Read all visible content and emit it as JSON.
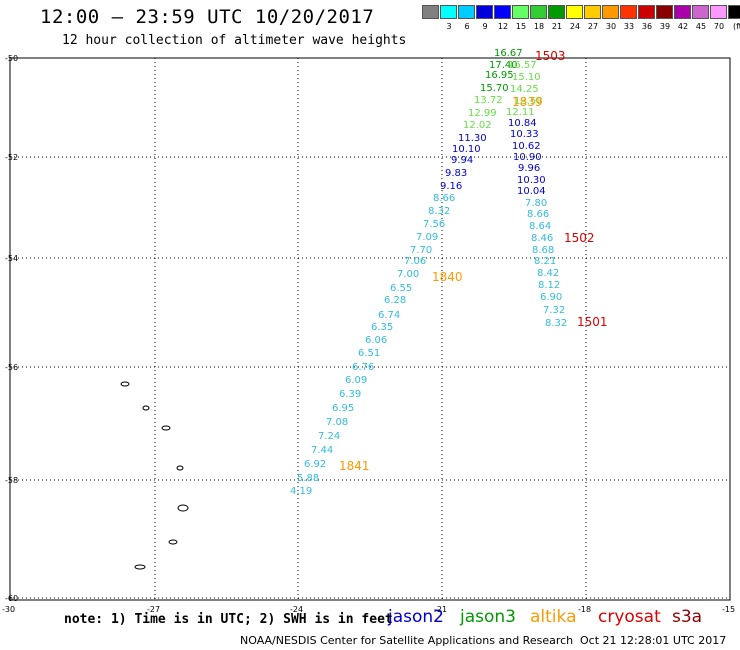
{
  "header": {
    "title": "12:00 — 23:59 UTC 10/20/2017",
    "subtitle": "12 hour collection of altimeter wave heights"
  },
  "color_scale": {
    "unit": "(ft)",
    "swatches": [
      "#808080",
      "#00ffff",
      "#00ccff",
      "#0000dd",
      "#0000ff",
      "#66ff66",
      "#33cc33",
      "#009900",
      "#ffff00",
      "#ffcc00",
      "#ff9900",
      "#ff3300",
      "#cc0000",
      "#880000",
      "#aa00aa",
      "#cc66cc",
      "#ff99ff",
      "#000000"
    ],
    "labels": [
      "3",
      "6",
      "9",
      "12",
      "15",
      "18",
      "21",
      "24",
      "27",
      "30",
      "33",
      "36",
      "39",
      "42",
      "45",
      "70"
    ]
  },
  "map": {
    "lat_labels": [
      "-50",
      "-52",
      "-54",
      "-56",
      "-58",
      "-60"
    ],
    "lon_labels": [
      "-30",
      "-27",
      "-24",
      "-21",
      "-18",
      "-15"
    ],
    "colors": {
      "jason2": "#0000cc",
      "jason3": "#009900",
      "altika": "#ff9900",
      "cryosat": "#dd0000",
      "s3a": "#880000",
      "cyan": "#33bbdd",
      "light_green": "#66dd44"
    },
    "track_a": [
      {
        "v": "4.19",
        "c": "cyan"
      },
      {
        "v": "5.88",
        "c": "cyan"
      },
      {
        "v": "6.92",
        "c": "cyan"
      },
      {
        "v": "7.44",
        "c": "cyan"
      },
      {
        "v": "7.24",
        "c": "cyan"
      },
      {
        "v": "7.08",
        "c": "cyan"
      },
      {
        "v": "6.95",
        "c": "cyan"
      },
      {
        "v": "6.39",
        "c": "cyan"
      },
      {
        "v": "6.09",
        "c": "cyan"
      },
      {
        "v": "6.76",
        "c": "cyan"
      },
      {
        "v": "6.51",
        "c": "cyan"
      },
      {
        "v": "6.06",
        "c": "cyan"
      },
      {
        "v": "6.35",
        "c": "cyan"
      },
      {
        "v": "6.74",
        "c": "cyan"
      },
      {
        "v": "6.28",
        "c": "cyan"
      },
      {
        "v": "6.55",
        "c": "cyan"
      },
      {
        "v": "7.00",
        "c": "cyan"
      },
      {
        "v": "7.06",
        "c": "cyan"
      },
      {
        "v": "7.70",
        "c": "cyan"
      },
      {
        "v": "7.09",
        "c": "cyan"
      },
      {
        "v": "7.56",
        "c": "cyan"
      },
      {
        "v": "8.32",
        "c": "cyan"
      },
      {
        "v": "8.66",
        "c": "cyan"
      },
      {
        "v": "9.16",
        "c": "jason2"
      },
      {
        "v": "9.83",
        "c": "jason2"
      },
      {
        "v": "9.94",
        "c": "jason2"
      },
      {
        "v": "10.10",
        "c": "jason2"
      },
      {
        "v": "11.30",
        "c": "jason2"
      },
      {
        "v": "12.02",
        "c": "light_green"
      },
      {
        "v": "12.99",
        "c": "light_green"
      },
      {
        "v": "13.72",
        "c": "light_green"
      },
      {
        "v": "15.70",
        "c": "jason3"
      },
      {
        "v": "16.95",
        "c": "jason3"
      },
      {
        "v": "17.40",
        "c": "jason3"
      },
      {
        "v": "16.67",
        "c": "jason3"
      }
    ],
    "track_b": [
      {
        "v": "16.57",
        "c": "light_green"
      },
      {
        "v": "15.10",
        "c": "light_green"
      },
      {
        "v": "14.25",
        "c": "light_green"
      },
      {
        "v": "13.58",
        "c": "light_green"
      },
      {
        "v": "12.11",
        "c": "light_green"
      },
      {
        "v": "10.84",
        "c": "jason2"
      },
      {
        "v": "10.33",
        "c": "jason2"
      },
      {
        "v": "10.62",
        "c": "jason2"
      },
      {
        "v": "10.90",
        "c": "jason2"
      },
      {
        "v": "9.96",
        "c": "jason2"
      },
      {
        "v": "10.30",
        "c": "jason2"
      },
      {
        "v": "10.04",
        "c": "jason2"
      },
      {
        "v": "7.80",
        "c": "cyan"
      },
      {
        "v": "8.66",
        "c": "cyan"
      },
      {
        "v": "8.64",
        "c": "cyan"
      },
      {
        "v": "8.46",
        "c": "cyan"
      },
      {
        "v": "8.68",
        "c": "cyan"
      },
      {
        "v": "8.21",
        "c": "cyan"
      },
      {
        "v": "8.42",
        "c": "cyan"
      },
      {
        "v": "8.12",
        "c": "cyan"
      },
      {
        "v": "6.90",
        "c": "cyan"
      },
      {
        "v": "7.32",
        "c": "cyan"
      },
      {
        "v": "8.32",
        "c": "cyan"
      }
    ],
    "time_labels": [
      {
        "t": "1503",
        "c": "cryosat"
      },
      {
        "t": "1839",
        "c": "altika"
      },
      {
        "t": "1502",
        "c": "cryosat"
      },
      {
        "t": "1840",
        "c": "altika"
      },
      {
        "t": "1501",
        "c": "cryosat"
      },
      {
        "t": "1841",
        "c": "altika"
      }
    ]
  },
  "note": "note: 1) Time is in UTC; 2) SWH is in feet",
  "legend": [
    {
      "label": "jason2",
      "color": "#0000cc"
    },
    {
      "label": "jason3",
      "color": "#009900"
    },
    {
      "label": "altika",
      "color": "#ff9900"
    },
    {
      "label": "cryosat",
      "color": "#dd0000"
    },
    {
      "label": "s3a",
      "color": "#880000"
    }
  ],
  "footer": {
    "credit": "NOAA/NESDIS Center for Satellite Applications and Research",
    "timestamp": "Oct 21 12:28:01 UTC 2017"
  }
}
